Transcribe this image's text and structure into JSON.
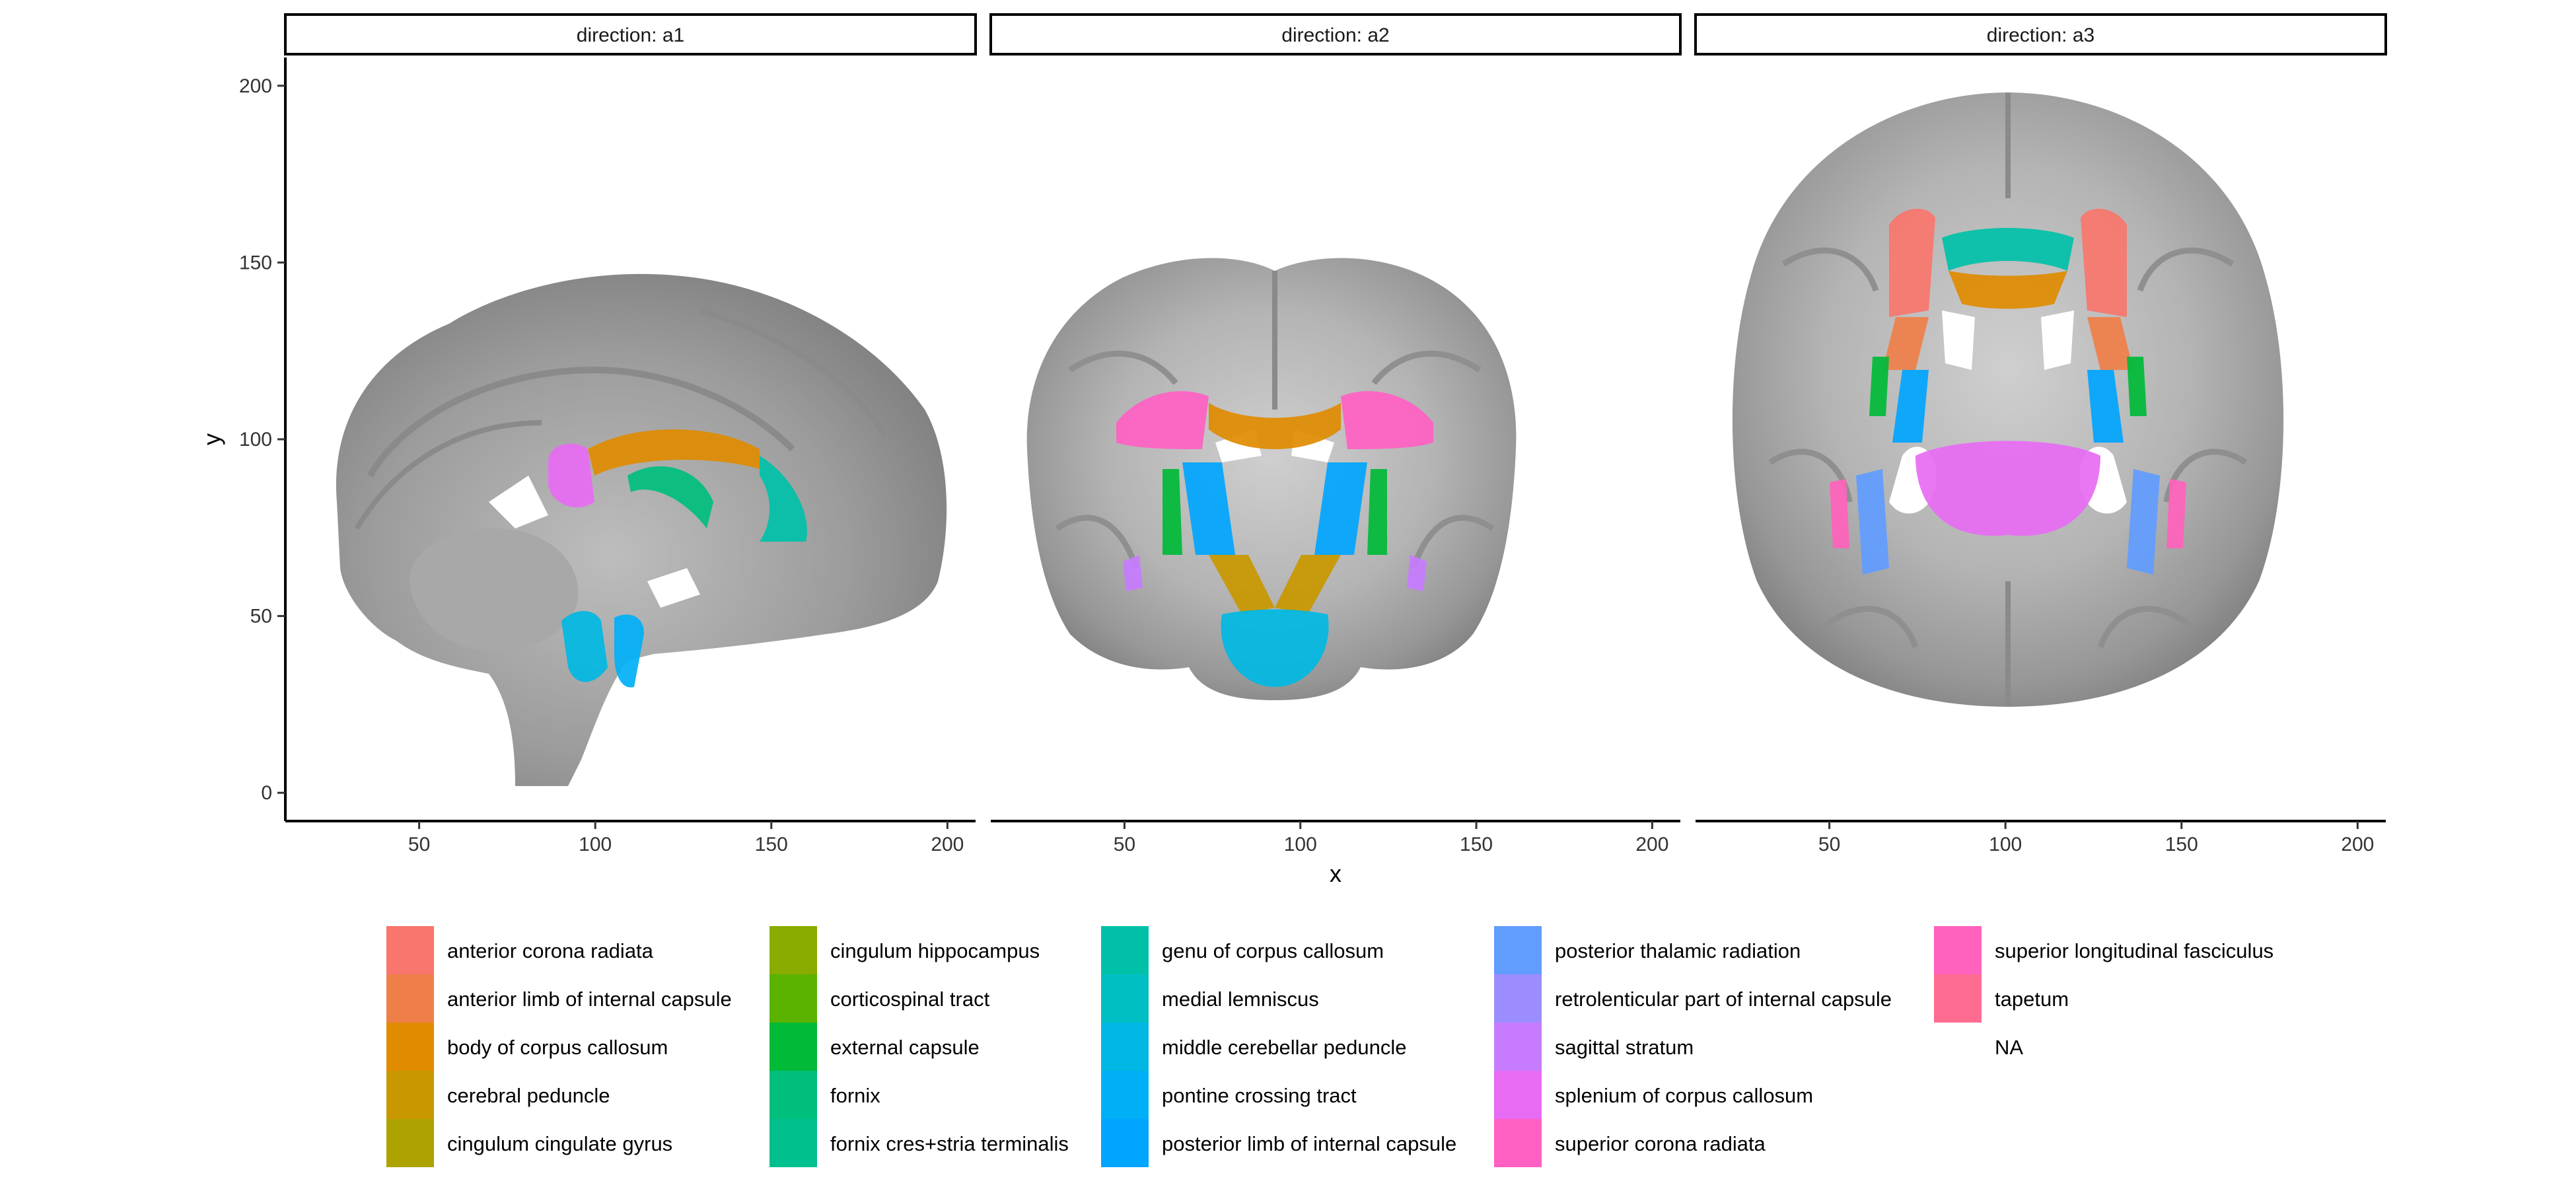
{
  "chart_data": {
    "type": "heatmap",
    "description_free": true,
    "xlabel": "x",
    "ylabel": "y",
    "xlim": [
      12,
      208
    ],
    "ylim": [
      -8,
      208
    ],
    "x_ticks": [
      50,
      100,
      150,
      200
    ],
    "y_ticks": [
      0,
      50,
      100,
      150,
      200
    ],
    "facets": [
      {
        "label": "direction: a1"
      },
      {
        "label": "direction: a2"
      },
      {
        "label": "direction: a3"
      }
    ],
    "legend": {
      "position": "bottom",
      "columns": [
        [
          "anterior corona radiata",
          "anterior limb of internal capsule",
          "body of corpus callosum",
          "cerebral peduncle",
          "cingulum cingulate gyrus"
        ],
        [
          "cingulum hippocampus",
          "corticospinal tract",
          "external capsule",
          "fornix",
          "fornix cres+stria terminalis"
        ],
        [
          "genu of corpus callosum",
          "medial lemniscus",
          "middle cerebellar peduncle",
          "pontine crossing tract",
          "posterior limb of internal capsule"
        ],
        [
          "posterior thalamic radiation",
          "retrolenticular part of internal capsule",
          "sagittal stratum",
          "splenium of corpus callosum",
          "superior corona radiata"
        ],
        [
          "superior longitudinal fasciculus",
          "tapetum",
          "NA"
        ]
      ]
    },
    "colors": {
      "anterior corona radiata": "#F8766D",
      "anterior limb of internal capsule": "#EF7F49",
      "body of corpus callosum": "#E08B00",
      "cerebral peduncle": "#C99800",
      "cingulum cingulate gyrus": "#ADA200",
      "cingulum hippocampus": "#8AAB00",
      "corticospinal tract": "#5BB300",
      "external capsule": "#00BA38",
      "fornix": "#00BF7D",
      "fornix cres+stria terminalis": "#00C08D",
      "genu of corpus callosum": "#00C1A8",
      "medial lemniscus": "#00BFC4",
      "middle cerebellar peduncle": "#00B8E3",
      "pontine crossing tract": "#00B0F6",
      "posterior limb of internal capsule": "#00A5FF",
      "posterior thalamic radiation": "#619CFF",
      "retrolenticular part of internal capsule": "#9C8DFF",
      "sagittal stratum": "#C77CFF",
      "splenium of corpus callosum": "#E76BF3",
      "superior corona radiata": "#FF61C3",
      "superior longitudinal fasciculus": "#FF62BC",
      "tapetum": "#FF6C91",
      "NA": "#FFFFFF"
    }
  }
}
